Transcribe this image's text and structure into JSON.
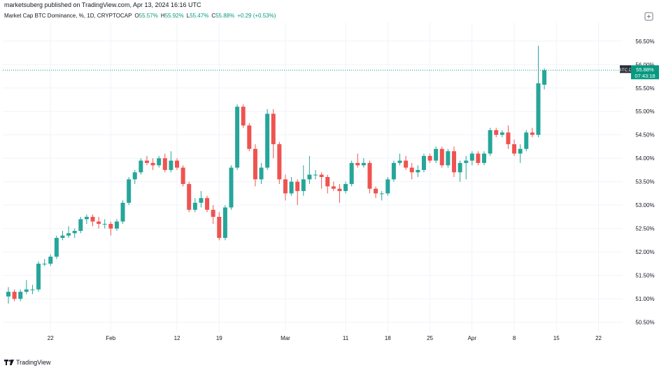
{
  "header": {
    "published_text": "marketsuberg published on TradingView.com, Apr 13, 2024 16:16 UTC"
  },
  "legend": {
    "symbol": "Market Cap BTC Dominance, %, 1D, CRYPTOCAP",
    "open_label": "O",
    "open": "55.57%",
    "high_label": "H",
    "high": "55.92%",
    "low_label": "L",
    "low": "55.47%",
    "close_label": "C",
    "close": "55.88%",
    "change": "+0.29 (+0.53%)"
  },
  "footer": {
    "brand": "TradingView"
  },
  "colors": {
    "up": "#26a69a",
    "down": "#ef5350",
    "price_line": "#089981",
    "grid": "#f0f3fa"
  },
  "chart_data": {
    "type": "candlestick",
    "ylim": [
      50.3,
      56.9
    ],
    "y_ticks": [
      56.5,
      56.0,
      55.5,
      55.0,
      54.5,
      54.0,
      53.5,
      53.0,
      52.5,
      52.0,
      51.5,
      51.0,
      50.5
    ],
    "y_tick_labels": [
      "56.50%",
      "56.00%",
      "55.50%",
      "55.00%",
      "54.50%",
      "54.00%",
      "53.50%",
      "53.00%",
      "52.50%",
      "52.00%",
      "51.50%",
      "51.00%",
      "50.50%"
    ],
    "x_tick_labels": [
      {
        "label": "22",
        "date": "2024-01-22"
      },
      {
        "label": "Feb",
        "date": "2024-02-01"
      },
      {
        "label": "12",
        "date": "2024-02-12"
      },
      {
        "label": "19",
        "date": "2024-02-19"
      },
      {
        "label": "Mar",
        "date": "2024-03-01"
      },
      {
        "label": "11",
        "date": "2024-03-11"
      },
      {
        "label": "18",
        "date": "2024-03-18"
      },
      {
        "label": "25",
        "date": "2024-03-25"
      },
      {
        "label": "Apr",
        "date": "2024-04-01"
      },
      {
        "label": "8",
        "date": "2024-04-08"
      },
      {
        "label": "15",
        "date": "2024-04-15"
      },
      {
        "label": "22",
        "date": "2024-04-22"
      }
    ],
    "x_range": [
      "2024-01-15",
      "2024-04-26"
    ],
    "last_price": {
      "symbol": "BTC.D",
      "value": 55.88,
      "label": "55.88%",
      "countdown": "07:43:18"
    },
    "candles": [
      {
        "date": "2024-01-15",
        "o": 51.05,
        "h": 51.25,
        "l": 50.9,
        "c": 51.15
      },
      {
        "date": "2024-01-16",
        "o": 51.15,
        "h": 51.2,
        "l": 50.95,
        "c": 51.0
      },
      {
        "date": "2024-01-17",
        "o": 51.0,
        "h": 51.2,
        "l": 50.95,
        "c": 51.15
      },
      {
        "date": "2024-01-18",
        "o": 51.15,
        "h": 51.4,
        "l": 51.1,
        "c": 51.2
      },
      {
        "date": "2024-01-19",
        "o": 51.2,
        "h": 51.3,
        "l": 51.1,
        "c": 51.2
      },
      {
        "date": "2024-01-20",
        "o": 51.2,
        "h": 51.8,
        "l": 51.15,
        "c": 51.75
      },
      {
        "date": "2024-01-21",
        "o": 51.75,
        "h": 51.85,
        "l": 51.7,
        "c": 51.75
      },
      {
        "date": "2024-01-22",
        "o": 51.75,
        "h": 51.95,
        "l": 51.7,
        "c": 51.9
      },
      {
        "date": "2024-01-23",
        "o": 51.9,
        "h": 52.35,
        "l": 51.85,
        "c": 52.3
      },
      {
        "date": "2024-01-24",
        "o": 52.3,
        "h": 52.45,
        "l": 52.25,
        "c": 52.35
      },
      {
        "date": "2024-01-25",
        "o": 52.35,
        "h": 52.55,
        "l": 52.3,
        "c": 52.4
      },
      {
        "date": "2024-01-26",
        "o": 52.4,
        "h": 52.5,
        "l": 52.3,
        "c": 52.45
      },
      {
        "date": "2024-01-27",
        "o": 52.45,
        "h": 52.75,
        "l": 52.4,
        "c": 52.7
      },
      {
        "date": "2024-01-28",
        "o": 52.7,
        "h": 52.8,
        "l": 52.6,
        "c": 52.75
      },
      {
        "date": "2024-01-29",
        "o": 52.75,
        "h": 52.8,
        "l": 52.55,
        "c": 52.65
      },
      {
        "date": "2024-01-30",
        "o": 52.65,
        "h": 52.75,
        "l": 52.5,
        "c": 52.6
      },
      {
        "date": "2024-01-31",
        "o": 52.6,
        "h": 52.7,
        "l": 52.5,
        "c": 52.6
      },
      {
        "date": "2024-02-01",
        "o": 52.6,
        "h": 52.65,
        "l": 52.35,
        "c": 52.5
      },
      {
        "date": "2024-02-02",
        "o": 52.5,
        "h": 52.7,
        "l": 52.45,
        "c": 52.65
      },
      {
        "date": "2024-02-03",
        "o": 52.65,
        "h": 53.1,
        "l": 52.6,
        "c": 53.05
      },
      {
        "date": "2024-02-04",
        "o": 53.05,
        "h": 53.6,
        "l": 53.0,
        "c": 53.55
      },
      {
        "date": "2024-02-05",
        "o": 53.55,
        "h": 53.75,
        "l": 53.45,
        "c": 53.7
      },
      {
        "date": "2024-02-06",
        "o": 53.7,
        "h": 54.0,
        "l": 53.65,
        "c": 53.95
      },
      {
        "date": "2024-02-07",
        "o": 53.95,
        "h": 54.05,
        "l": 53.85,
        "c": 53.9
      },
      {
        "date": "2024-02-08",
        "o": 53.9,
        "h": 54.0,
        "l": 53.75,
        "c": 53.85
      },
      {
        "date": "2024-02-09",
        "o": 53.85,
        "h": 54.05,
        "l": 53.8,
        "c": 54.0
      },
      {
        "date": "2024-02-10",
        "o": 54.0,
        "h": 54.1,
        "l": 53.7,
        "c": 53.75
      },
      {
        "date": "2024-02-11",
        "o": 53.75,
        "h": 54.15,
        "l": 53.7,
        "c": 53.95
      },
      {
        "date": "2024-02-12",
        "o": 53.95,
        "h": 54.0,
        "l": 53.75,
        "c": 53.8
      },
      {
        "date": "2024-02-13",
        "o": 53.8,
        "h": 53.85,
        "l": 53.4,
        "c": 53.45
      },
      {
        "date": "2024-02-14",
        "o": 53.45,
        "h": 53.5,
        "l": 52.85,
        "c": 52.9
      },
      {
        "date": "2024-02-15",
        "o": 52.9,
        "h": 53.15,
        "l": 52.85,
        "c": 53.05
      },
      {
        "date": "2024-02-16",
        "o": 53.05,
        "h": 53.3,
        "l": 52.95,
        "c": 53.15
      },
      {
        "date": "2024-02-17",
        "o": 53.15,
        "h": 53.2,
        "l": 52.85,
        "c": 52.9
      },
      {
        "date": "2024-02-18",
        "o": 52.9,
        "h": 53.0,
        "l": 52.6,
        "c": 52.75
      },
      {
        "date": "2024-02-19",
        "o": 52.75,
        "h": 52.85,
        "l": 52.25,
        "c": 52.3
      },
      {
        "date": "2024-02-20",
        "o": 52.3,
        "h": 53.0,
        "l": 52.25,
        "c": 52.95
      },
      {
        "date": "2024-02-21",
        "o": 52.95,
        "h": 53.85,
        "l": 52.9,
        "c": 53.8
      },
      {
        "date": "2024-02-22",
        "o": 53.8,
        "h": 55.15,
        "l": 53.75,
        "c": 55.1
      },
      {
        "date": "2024-02-23",
        "o": 55.1,
        "h": 55.15,
        "l": 54.65,
        "c": 54.7
      },
      {
        "date": "2024-02-24",
        "o": 54.7,
        "h": 54.75,
        "l": 54.15,
        "c": 54.2
      },
      {
        "date": "2024-02-25",
        "o": 54.2,
        "h": 54.3,
        "l": 53.4,
        "c": 53.55
      },
      {
        "date": "2024-02-26",
        "o": 53.55,
        "h": 53.9,
        "l": 53.45,
        "c": 53.8
      },
      {
        "date": "2024-02-27",
        "o": 53.8,
        "h": 55.05,
        "l": 53.75,
        "c": 54.95
      },
      {
        "date": "2024-02-28",
        "o": 54.95,
        "h": 55.05,
        "l": 54.0,
        "c": 54.3
      },
      {
        "date": "2024-02-29",
        "o": 54.3,
        "h": 54.35,
        "l": 53.45,
        "c": 53.55
      },
      {
        "date": "2024-03-01",
        "o": 53.55,
        "h": 53.65,
        "l": 53.1,
        "c": 53.25
      },
      {
        "date": "2024-03-02",
        "o": 53.25,
        "h": 53.6,
        "l": 53.2,
        "c": 53.5
      },
      {
        "date": "2024-03-03",
        "o": 53.5,
        "h": 53.55,
        "l": 53.0,
        "c": 53.3
      },
      {
        "date": "2024-03-04",
        "o": 53.3,
        "h": 53.85,
        "l": 53.2,
        "c": 53.55
      },
      {
        "date": "2024-03-05",
        "o": 53.55,
        "h": 54.05,
        "l": 53.45,
        "c": 53.65
      },
      {
        "date": "2024-03-06",
        "o": 53.65,
        "h": 53.75,
        "l": 53.55,
        "c": 53.65
      },
      {
        "date": "2024-03-07",
        "o": 53.65,
        "h": 53.7,
        "l": 53.35,
        "c": 53.6
      },
      {
        "date": "2024-03-08",
        "o": 53.6,
        "h": 53.65,
        "l": 53.25,
        "c": 53.4
      },
      {
        "date": "2024-03-09",
        "o": 53.4,
        "h": 53.5,
        "l": 53.3,
        "c": 53.35
      },
      {
        "date": "2024-03-10",
        "o": 53.35,
        "h": 53.45,
        "l": 53.05,
        "c": 53.3
      },
      {
        "date": "2024-03-11",
        "o": 53.3,
        "h": 53.5,
        "l": 53.25,
        "c": 53.45
      },
      {
        "date": "2024-03-12",
        "o": 53.45,
        "h": 53.95,
        "l": 53.4,
        "c": 53.9
      },
      {
        "date": "2024-03-13",
        "o": 53.9,
        "h": 54.1,
        "l": 53.8,
        "c": 53.85
      },
      {
        "date": "2024-03-14",
        "o": 53.85,
        "h": 54.0,
        "l": 53.8,
        "c": 53.9
      },
      {
        "date": "2024-03-15",
        "o": 53.9,
        "h": 53.95,
        "l": 53.25,
        "c": 53.35
      },
      {
        "date": "2024-03-16",
        "o": 53.35,
        "h": 53.4,
        "l": 53.15,
        "c": 53.25
      },
      {
        "date": "2024-03-17",
        "o": 53.25,
        "h": 53.3,
        "l": 53.1,
        "c": 53.25
      },
      {
        "date": "2024-03-18",
        "o": 53.25,
        "h": 53.6,
        "l": 53.2,
        "c": 53.55
      },
      {
        "date": "2024-03-19",
        "o": 53.55,
        "h": 53.95,
        "l": 53.5,
        "c": 53.9
      },
      {
        "date": "2024-03-20",
        "o": 53.9,
        "h": 54.1,
        "l": 53.85,
        "c": 53.95
      },
      {
        "date": "2024-03-21",
        "o": 53.95,
        "h": 54.05,
        "l": 53.75,
        "c": 53.8
      },
      {
        "date": "2024-03-22",
        "o": 53.8,
        "h": 53.9,
        "l": 53.55,
        "c": 53.7
      },
      {
        "date": "2024-03-23",
        "o": 53.7,
        "h": 53.85,
        "l": 53.6,
        "c": 53.75
      },
      {
        "date": "2024-03-24",
        "o": 53.75,
        "h": 54.1,
        "l": 53.7,
        "c": 54.05
      },
      {
        "date": "2024-03-25",
        "o": 54.05,
        "h": 54.1,
        "l": 53.9,
        "c": 53.95
      },
      {
        "date": "2024-03-26",
        "o": 53.95,
        "h": 54.25,
        "l": 53.9,
        "c": 54.2
      },
      {
        "date": "2024-03-27",
        "o": 54.2,
        "h": 54.25,
        "l": 53.8,
        "c": 53.85
      },
      {
        "date": "2024-03-28",
        "o": 53.85,
        "h": 54.2,
        "l": 53.8,
        "c": 54.15
      },
      {
        "date": "2024-03-29",
        "o": 54.15,
        "h": 54.25,
        "l": 53.6,
        "c": 53.7
      },
      {
        "date": "2024-03-30",
        "o": 53.7,
        "h": 53.95,
        "l": 53.5,
        "c": 53.9
      },
      {
        "date": "2024-03-31",
        "o": 53.9,
        "h": 54.05,
        "l": 53.55,
        "c": 53.95
      },
      {
        "date": "2024-04-01",
        "o": 53.95,
        "h": 54.15,
        "l": 53.85,
        "c": 54.1
      },
      {
        "date": "2024-04-02",
        "o": 54.1,
        "h": 54.15,
        "l": 53.85,
        "c": 53.9
      },
      {
        "date": "2024-04-03",
        "o": 53.9,
        "h": 54.15,
        "l": 53.85,
        "c": 54.1
      },
      {
        "date": "2024-04-04",
        "o": 54.1,
        "h": 54.65,
        "l": 54.05,
        "c": 54.6
      },
      {
        "date": "2024-04-05",
        "o": 54.6,
        "h": 54.65,
        "l": 54.45,
        "c": 54.5
      },
      {
        "date": "2024-04-06",
        "o": 54.5,
        "h": 54.6,
        "l": 54.45,
        "c": 54.55
      },
      {
        "date": "2024-04-07",
        "o": 54.55,
        "h": 54.7,
        "l": 54.2,
        "c": 54.3
      },
      {
        "date": "2024-04-08",
        "o": 54.3,
        "h": 54.4,
        "l": 54.05,
        "c": 54.1
      },
      {
        "date": "2024-04-09",
        "o": 54.1,
        "h": 54.3,
        "l": 53.9,
        "c": 54.2
      },
      {
        "date": "2024-04-10",
        "o": 54.2,
        "h": 54.6,
        "l": 54.15,
        "c": 54.55
      },
      {
        "date": "2024-04-11",
        "o": 54.55,
        "h": 54.65,
        "l": 54.45,
        "c": 54.5
      },
      {
        "date": "2024-04-12",
        "o": 54.5,
        "h": 56.4,
        "l": 54.45,
        "c": 55.6
      },
      {
        "date": "2024-04-13",
        "o": 55.57,
        "h": 55.92,
        "l": 55.47,
        "c": 55.88
      }
    ]
  }
}
